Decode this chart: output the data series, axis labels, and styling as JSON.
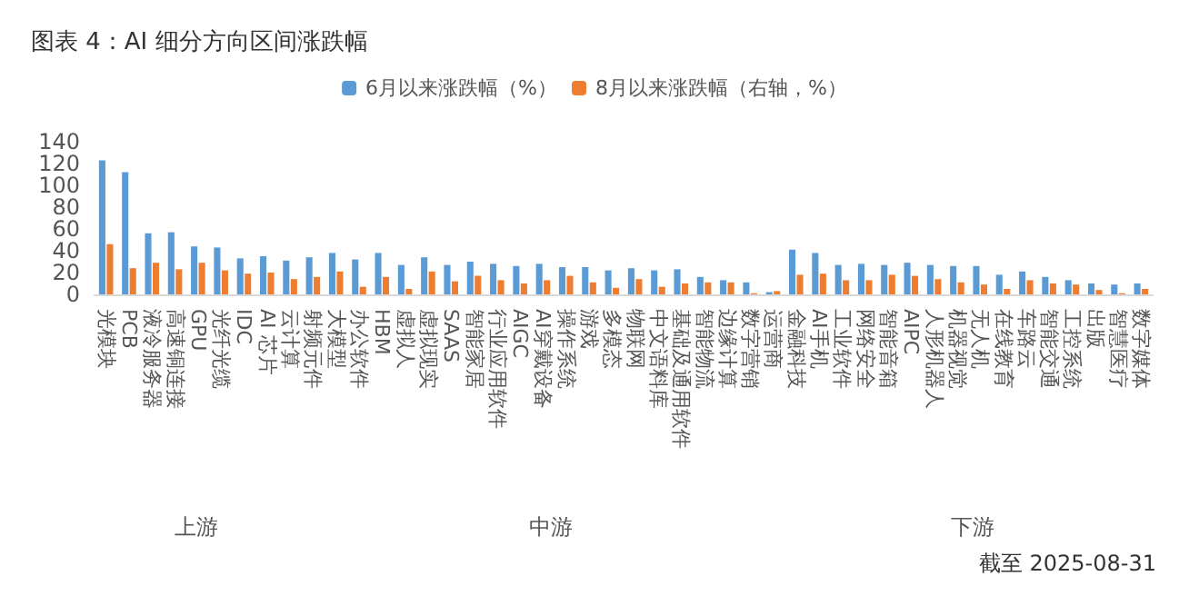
{
  "chart_data": {
    "type": "bar",
    "title": "图表 4：AI 细分方向区间涨跌幅",
    "categories": [
      "光模块",
      "PCB",
      "液冷服务器",
      "高速铜连接",
      "GPU",
      "光纤光缆",
      "IDC",
      "AI 芯片",
      "云计算",
      "射频元件",
      "大模型",
      "办公软件",
      "HBM",
      "虚拟人",
      "虚拟现实",
      "SAAS",
      "智能家居",
      "行业应用软件",
      "AIGC",
      "AI穿戴设备",
      "操作系统",
      "游戏",
      "多模态",
      "物联网",
      "中文语料库",
      "基础及通用软件",
      "智能物流",
      "边缘计算",
      "数字营销",
      "运营商",
      "金融科技",
      "AI手机",
      "工业软件",
      "网络安全",
      "智能音箱",
      "AIPC",
      "人形机器人",
      "机器视觉",
      "无人机",
      "在线教育",
      "车路云",
      "智能交通",
      "工控系统",
      "出版",
      "智慧医疗",
      "数字媒体"
    ],
    "series": [
      {
        "name": "6月以来涨跌幅（%）",
        "color": "#5b9bd5",
        "values": [
          123,
          112,
          56,
          57,
          44,
          43,
          33,
          35,
          31,
          34,
          38,
          32,
          38,
          27,
          34,
          27,
          30,
          28,
          26,
          28,
          25,
          25,
          22,
          24,
          22,
          23,
          16,
          13,
          11,
          2,
          41,
          38,
          27,
          28,
          27,
          29,
          27,
          26,
          26,
          18,
          21,
          16,
          13,
          10,
          9,
          10
        ]
      },
      {
        "name": "8月以来涨跌幅（右轴，%）",
        "color": "#ed7d31",
        "values": [
          46,
          24,
          29,
          23,
          29,
          22,
          19,
          20,
          14,
          16,
          21,
          7,
          16,
          5,
          21,
          12,
          17,
          13,
          10,
          13,
          17,
          11,
          6,
          14,
          7,
          10,
          11,
          11,
          1,
          3,
          18,
          19,
          13,
          13,
          18,
          17,
          14,
          11,
          9,
          5,
          13,
          10,
          9,
          4,
          1,
          5
        ]
      }
    ],
    "ylim": [
      0,
      140
    ],
    "yticks": [
      0,
      20,
      40,
      60,
      80,
      100,
      120,
      140
    ],
    "grid": false,
    "legend": "top",
    "annotations": [
      "上游",
      "中游",
      "下游",
      "截至 2025-08-31"
    ]
  }
}
